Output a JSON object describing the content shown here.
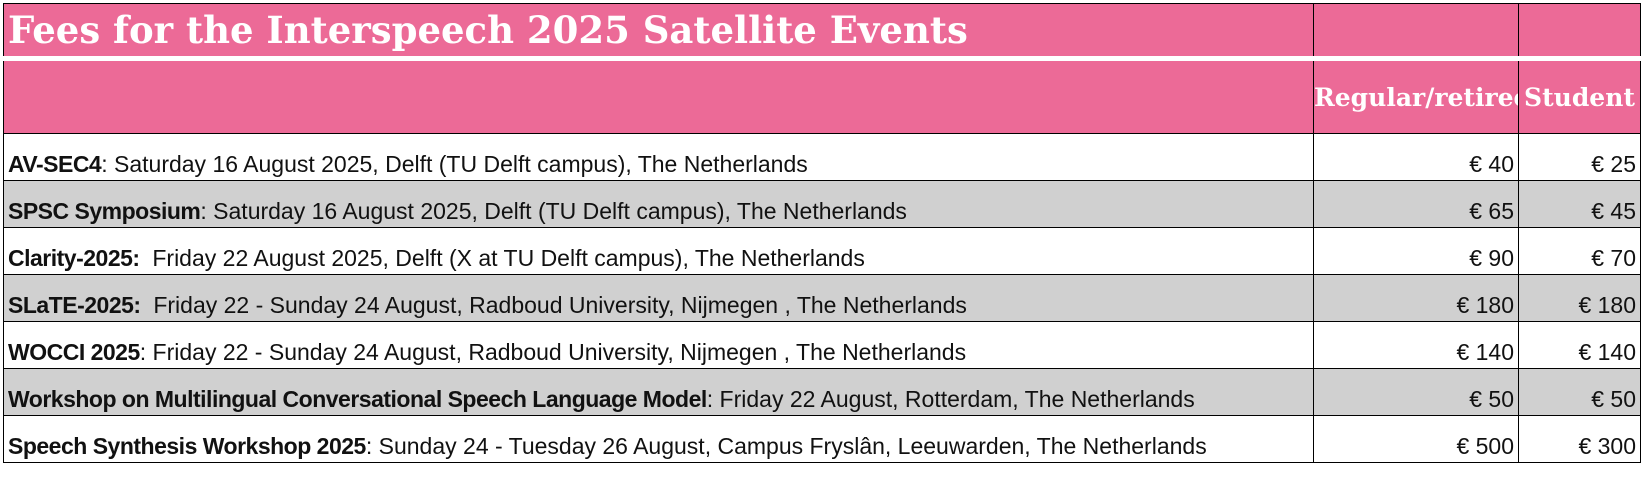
{
  "title": "Fees for the Interspeech 2025 Satellite Events",
  "columns": {
    "regular": "Regular/retiree",
    "student": "Student"
  },
  "colors": {
    "header_bg": "#ec6a97",
    "header_text": "#ffffff",
    "alt_row_bg": "#d0d0d0"
  },
  "events": [
    {
      "name": "AV-SEC4",
      "details": ": Saturday 16 August 2025, Delft (TU Delft campus), The Netherlands",
      "regular": "€ 40",
      "student": "€ 25"
    },
    {
      "name": "SPSC Symposium",
      "details": ": Saturday 16 August 2025, Delft (TU Delft campus), The Netherlands",
      "regular": "€ 65",
      "student": "€ 45"
    },
    {
      "name": "Clarity-2025:",
      "details": "  Friday 22 August 2025, Delft (X at TU Delft campus), The Netherlands",
      "regular": "€ 90",
      "student": "€ 70"
    },
    {
      "name": "SLaTE-2025:",
      "details": "  Friday 22 - Sunday 24 August, Radboud University, Nijmegen , The Netherlands",
      "regular": "€ 180",
      "student": "€ 180"
    },
    {
      "name": "WOCCI 2025",
      "details": ": Friday 22 - Sunday 24 August, Radboud University, Nijmegen , The Netherlands",
      "regular": "€ 140",
      "student": "€ 140"
    },
    {
      "name": "Workshop on Multilingual Conversational Speech Language Model",
      "details": ": Friday 22 August, Rotterdam, The Netherlands",
      "regular": "€ 50",
      "student": "€ 50"
    },
    {
      "name": "Speech Synthesis Workshop 2025",
      "details": ": Sunday 24 - Tuesday 26 August, Campus Fryslân, Leeuwarden, The Netherlands",
      "regular": "€ 500",
      "student": "€ 300"
    }
  ]
}
